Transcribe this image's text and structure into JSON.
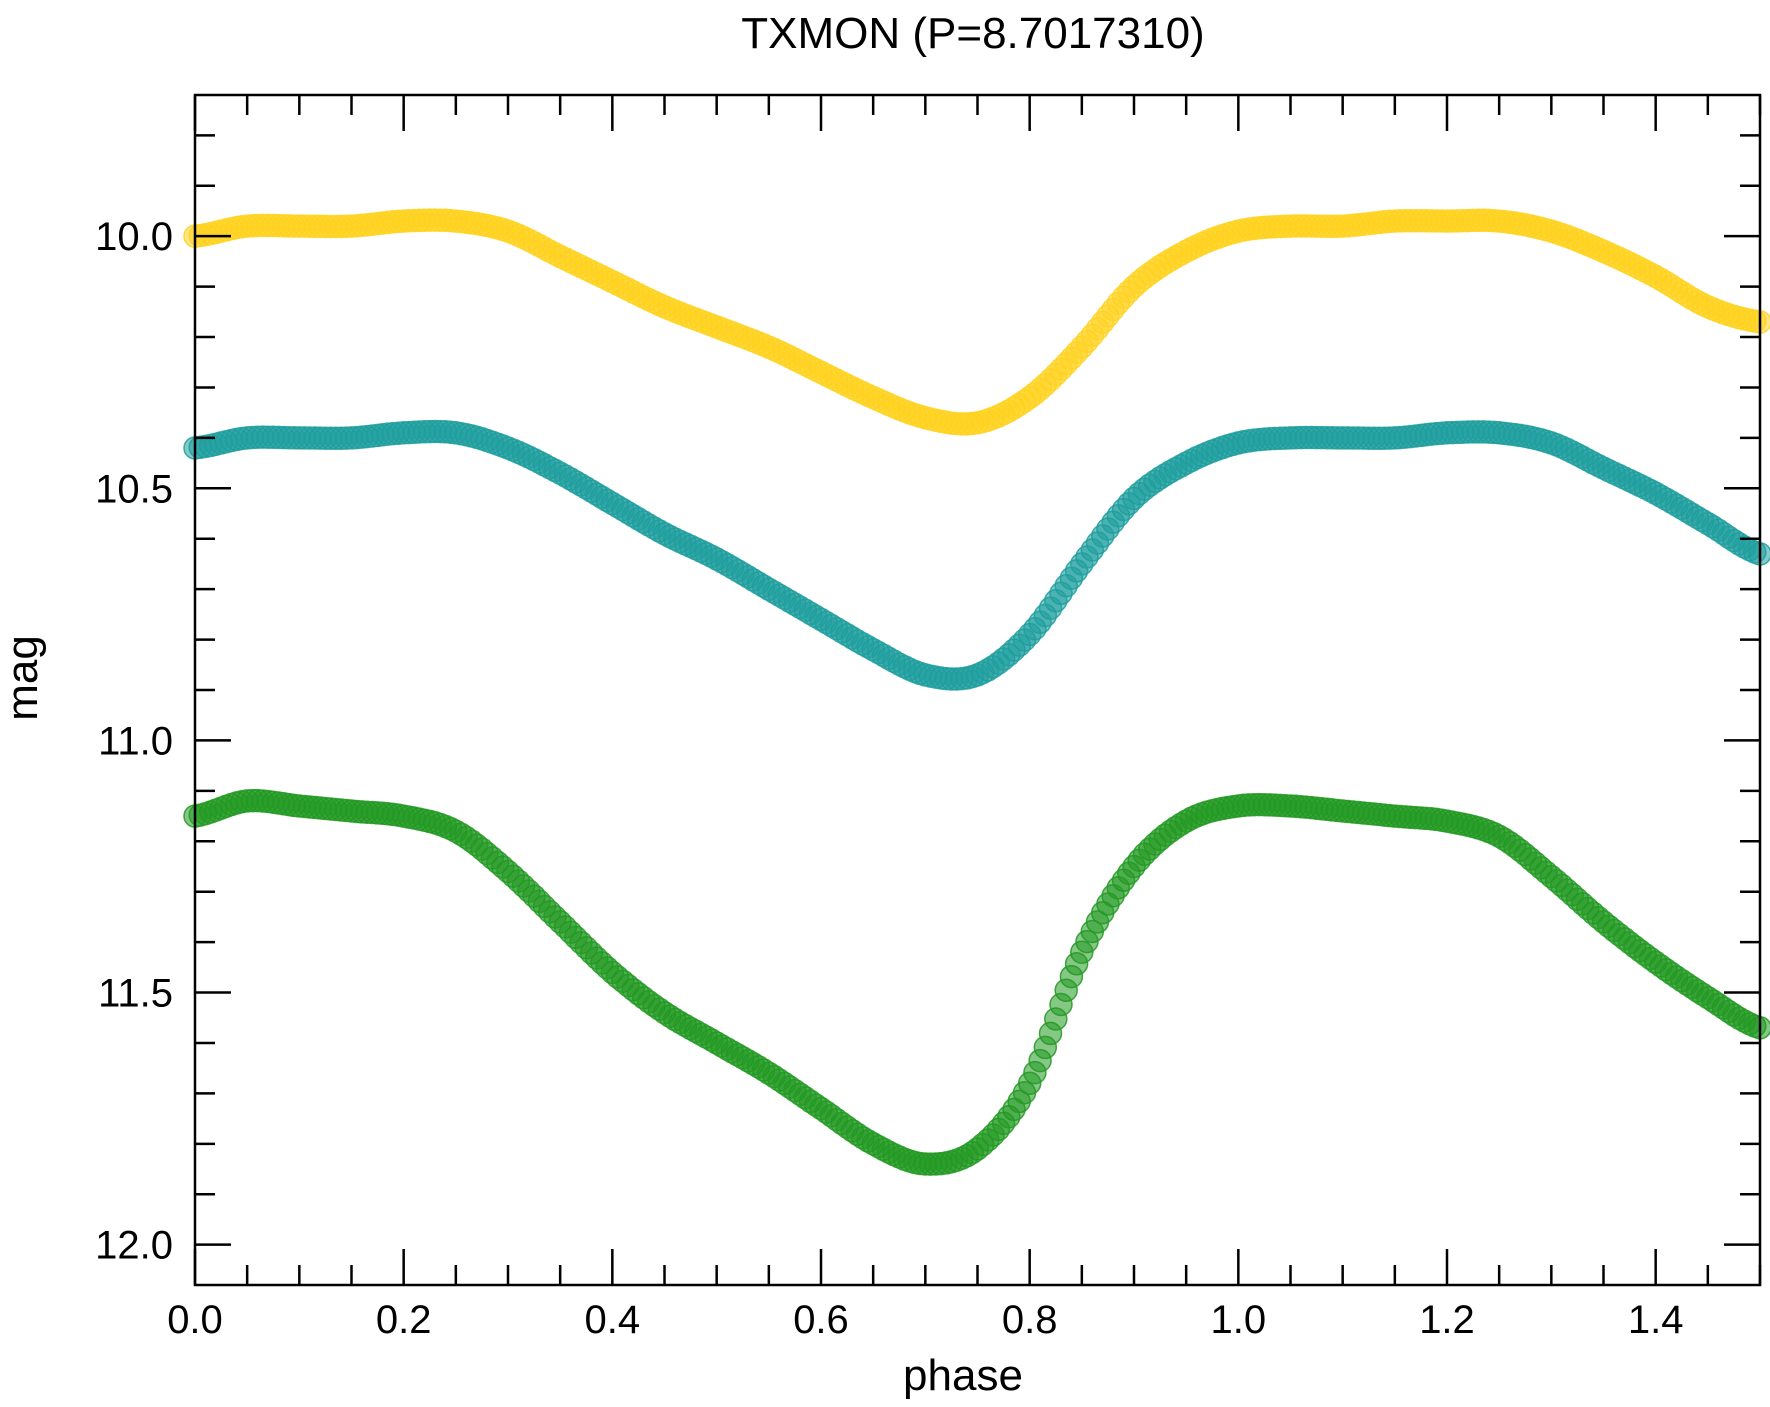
{
  "chart_data": {
    "type": "scatter",
    "title": "TXMON (P=8.7017310)",
    "xlabel": "phase",
    "ylabel": "mag",
    "xlim": [
      0.0,
      1.5
    ],
    "ylim": [
      12.08,
      9.72
    ],
    "y_inverted": true,
    "grid": false,
    "legend": "none",
    "x_ticks": [
      "0.0",
      "0.2",
      "0.4",
      "0.6",
      "0.8",
      "1.0",
      "1.2",
      "1.4"
    ],
    "y_ticks": [
      "10.0",
      "10.5",
      "11.0",
      "11.5",
      "12.0"
    ],
    "series": [
      {
        "color": "#FFD21F",
        "x": [
          0.0,
          0.05,
          0.1,
          0.15,
          0.2,
          0.25,
          0.3,
          0.35,
          0.4,
          0.45,
          0.5,
          0.55,
          0.6,
          0.65,
          0.7,
          0.75,
          0.8,
          0.85,
          0.9,
          0.95,
          1.0,
          1.05,
          1.1,
          1.15,
          1.2,
          1.25,
          1.3,
          1.35,
          1.4,
          1.45,
          1.5
        ],
        "values": [
          10.0,
          9.98,
          9.98,
          9.98,
          9.97,
          9.97,
          9.99,
          10.04,
          10.09,
          10.14,
          10.18,
          10.22,
          10.27,
          10.32,
          10.36,
          10.37,
          10.32,
          10.22,
          10.1,
          10.03,
          9.99,
          9.98,
          9.98,
          9.97,
          9.97,
          9.97,
          9.99,
          10.03,
          10.08,
          10.14,
          10.17
        ]
      },
      {
        "color": "#1F9E9E",
        "x": [
          0.0,
          0.05,
          0.1,
          0.15,
          0.2,
          0.25,
          0.3,
          0.35,
          0.4,
          0.45,
          0.5,
          0.55,
          0.6,
          0.65,
          0.7,
          0.75,
          0.8,
          0.85,
          0.9,
          0.95,
          1.0,
          1.05,
          1.1,
          1.15,
          1.2,
          1.25,
          1.3,
          1.35,
          1.4,
          1.45,
          1.5
        ],
        "values": [
          10.42,
          10.4,
          10.4,
          10.4,
          10.39,
          10.39,
          10.42,
          10.47,
          10.53,
          10.59,
          10.64,
          10.7,
          10.76,
          10.82,
          10.87,
          10.87,
          10.79,
          10.65,
          10.52,
          10.45,
          10.41,
          10.4,
          10.4,
          10.4,
          10.39,
          10.39,
          10.41,
          10.46,
          10.51,
          10.57,
          10.63
        ]
      },
      {
        "color": "#229922",
        "x": [
          0.0,
          0.05,
          0.1,
          0.15,
          0.2,
          0.25,
          0.3,
          0.35,
          0.4,
          0.45,
          0.5,
          0.55,
          0.6,
          0.65,
          0.7,
          0.75,
          0.8,
          0.85,
          0.9,
          0.95,
          1.0,
          1.05,
          1.1,
          1.15,
          1.2,
          1.25,
          1.3,
          1.35,
          1.4,
          1.45,
          1.5
        ],
        "values": [
          11.15,
          11.12,
          11.13,
          11.14,
          11.15,
          11.18,
          11.26,
          11.36,
          11.46,
          11.54,
          11.6,
          11.66,
          11.73,
          11.8,
          11.84,
          11.81,
          11.68,
          11.42,
          11.25,
          11.16,
          11.13,
          11.13,
          11.14,
          11.15,
          11.16,
          11.19,
          11.27,
          11.36,
          11.44,
          11.51,
          11.57
        ]
      }
    ]
  }
}
